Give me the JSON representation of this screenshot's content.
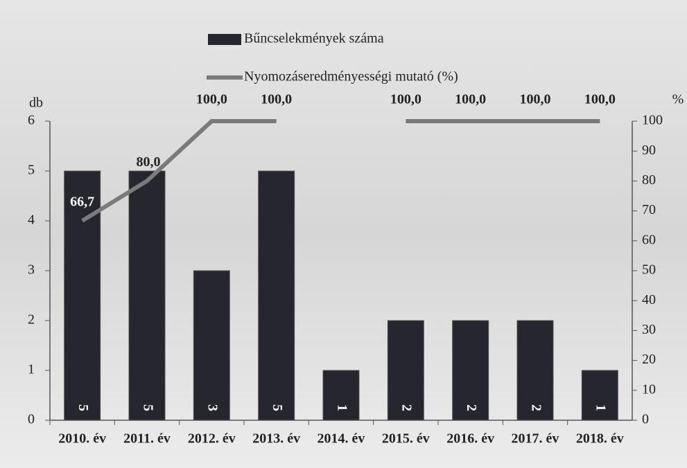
{
  "chart_data": {
    "type": "bar-line",
    "categories": [
      "2010. év",
      "2011. év",
      "2012. év",
      "2013. év",
      "2014. év",
      "2015. év",
      "2016. év",
      "2017. év",
      "2018. év"
    ],
    "series": [
      {
        "name": "Bűncselekmények száma",
        "color": "#26262e",
        "type": "bar",
        "values": [
          5,
          5,
          3,
          5,
          1,
          2,
          2,
          2,
          1
        ]
      },
      {
        "name": "Nyomozáseredményességi mutató (%)",
        "color": "#7a7a7a",
        "type": "line",
        "axis": "y2",
        "values": [
          66.7,
          80.0,
          100,
          100,
          null,
          100,
          100,
          100,
          100
        ],
        "value_labels": [
          "66,7",
          "80,0",
          "100,0",
          "100,0",
          null,
          "100,0",
          "100,0",
          "100,0",
          "100,0"
        ]
      }
    ],
    "y_label": "db",
    "y2_label": "%",
    "ylim": [
      0,
      6
    ],
    "yticks": [
      0,
      1,
      2,
      3,
      4,
      5,
      6
    ],
    "y2lim": [
      0,
      100
    ],
    "y2ticks": [
      0,
      10,
      20,
      30,
      40,
      50,
      60,
      70,
      80,
      90,
      100
    ]
  }
}
